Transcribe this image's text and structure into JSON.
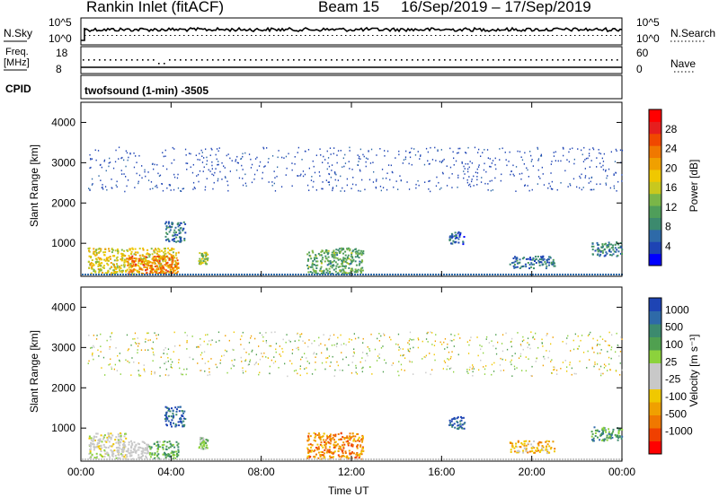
{
  "header": {
    "station": "Rankin Inlet (fitACF)",
    "beam": "Beam 15",
    "date_range": "16/Sep/2019 – 17/Sep/2019"
  },
  "top_panels": {
    "nsky_label": "N.Sky",
    "nsky_ticks": [
      "10^5",
      "10^0"
    ],
    "nsearch_label": "N.Search",
    "nsearch_ticks": [
      "10^5",
      "10^0"
    ],
    "freq_label": "Freq.",
    "freq_unit": "[MHz]",
    "freq_ticks": [
      "18",
      "8"
    ],
    "nave_label": "Nave",
    "nave_ticks": [
      "60",
      "0"
    ],
    "cpid_label": "CPID",
    "cpid_value": "twofsound (1-min) -3505"
  },
  "colors": {
    "power_scale": [
      "#0000ff",
      "#1e44b4",
      "#2e6aa8",
      "#3c8a6e",
      "#4f9e5a",
      "#7ab648",
      "#c8c81e",
      "#f0c800",
      "#f0a000",
      "#f07800",
      "#f04800",
      "#e61e1e",
      "#ff0000"
    ],
    "velocity_scale": [
      "#ff0000",
      "#f04000",
      "#f07800",
      "#f0a000",
      "#f0c800",
      "#c8c8c8",
      "#c8c8c8",
      "#8cd23c",
      "#50a050",
      "#3c8a6e",
      "#2e6aa8",
      "#1e44b4"
    ]
  },
  "chart_data": [
    {
      "type": "heatmap",
      "panel": "power",
      "ylabel": "Slant Range [km]",
      "ylim": [
        180,
        4500
      ],
      "yticks": [
        "4000",
        "3000",
        "2000",
        "1000"
      ],
      "xlim": [
        0,
        24
      ],
      "xticks": [
        "00:00",
        "04:00",
        "08:00",
        "12:00",
        "16:00",
        "20:00",
        "00:00"
      ],
      "colorbar_label": "Power [dB]",
      "colorbar_ticks": [
        "28",
        "24",
        "20",
        "16",
        "12",
        "8",
        "4"
      ],
      "colorbar_range": [
        0,
        30
      ],
      "grid": false,
      "clusters": [
        {
          "t": [
            0.3,
            4.3
          ],
          "r": [
            250,
            900
          ],
          "level": 0.55
        },
        {
          "t": [
            2.0,
            4.3
          ],
          "r": [
            250,
            700
          ],
          "level": 0.75
        },
        {
          "t": [
            3.7,
            4.6
          ],
          "r": [
            1050,
            1550
          ],
          "level": 0.2
        },
        {
          "t": [
            5.2,
            5.6
          ],
          "r": [
            500,
            800
          ],
          "level": 0.45
        },
        {
          "t": [
            10.0,
            12.5
          ],
          "r": [
            250,
            900
          ],
          "level": 0.35
        },
        {
          "t": [
            16.3,
            17.0
          ],
          "r": [
            1000,
            1300
          ],
          "level": 0.15
        },
        {
          "t": [
            19.0,
            21.0
          ],
          "r": [
            400,
            700
          ],
          "level": 0.2
        },
        {
          "t": [
            22.6,
            24.0
          ],
          "r": [
            700,
            1050
          ],
          "level": 0.25
        },
        {
          "t": [
            0.3,
            24.0
          ],
          "r": [
            2300,
            3400
          ],
          "level": 0.1,
          "sparse": true
        }
      ]
    },
    {
      "type": "heatmap",
      "panel": "velocity",
      "ylabel": "Slant Range [km]",
      "ylim": [
        180,
        4500
      ],
      "yticks": [
        "4000",
        "3000",
        "2000",
        "1000"
      ],
      "xlim": [
        0,
        24
      ],
      "xticks": [
        "00:00",
        "04:00",
        "08:00",
        "12:00",
        "16:00",
        "20:00",
        "00:00"
      ],
      "xlabel": "Time UT",
      "colorbar_label": "Velocity [m s⁻¹]",
      "colorbar_ticks": [
        "1000",
        "500",
        "100",
        "25",
        "-25",
        "-100",
        "-500",
        "-1000"
      ],
      "colorbar_range": [
        -1200,
        1200
      ],
      "grid": false,
      "clusters": [
        {
          "t": [
            0.3,
            2.0
          ],
          "r": [
            250,
            900
          ],
          "level": 0.5
        },
        {
          "t": [
            1.6,
            3.0
          ],
          "r": [
            250,
            700
          ],
          "level": 0.5,
          "gray": true
        },
        {
          "t": [
            3.0,
            4.3
          ],
          "r": [
            250,
            700
          ],
          "level": 0.7
        },
        {
          "t": [
            3.7,
            4.6
          ],
          "r": [
            1050,
            1550
          ],
          "level": 0.9
        },
        {
          "t": [
            5.2,
            5.6
          ],
          "r": [
            500,
            800
          ],
          "level": 0.62
        },
        {
          "t": [
            10.0,
            12.5
          ],
          "r": [
            250,
            900
          ],
          "level": 0.25
        },
        {
          "t": [
            16.3,
            17.0
          ],
          "r": [
            1000,
            1300
          ],
          "level": 0.9
        },
        {
          "t": [
            19.0,
            21.0
          ],
          "r": [
            400,
            700
          ],
          "level": 0.35
        },
        {
          "t": [
            22.6,
            24.0
          ],
          "r": [
            700,
            1050
          ],
          "level": 0.75
        },
        {
          "t": [
            0.3,
            24.0
          ],
          "r": [
            2300,
            3400
          ],
          "level": 0.4,
          "sparse": true
        }
      ]
    }
  ]
}
